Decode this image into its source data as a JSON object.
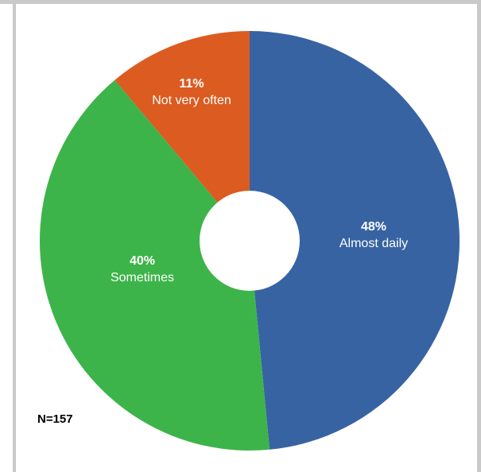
{
  "chart_data": {
    "type": "pie",
    "donut": true,
    "slices": [
      {
        "label": "Almost daily",
        "value": 48,
        "value_label": "48%",
        "color": "#3763a3"
      },
      {
        "label": "Sometimes",
        "value": 40,
        "value_label": "40%",
        "color": "#3db44a"
      },
      {
        "label": "Not very often",
        "value": 11,
        "value_label": "11%",
        "color": "#dc5b20"
      }
    ],
    "note": "N=157"
  },
  "colors": {
    "frame": "#c9c9c9",
    "background": "#ffffff",
    "label_text": "#ffffff"
  }
}
